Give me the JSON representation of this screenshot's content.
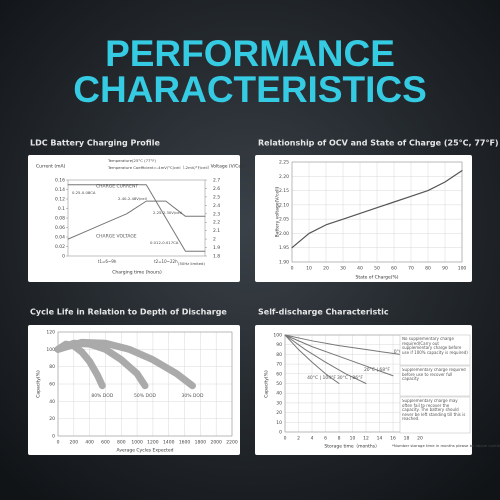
{
  "title": {
    "line1": "PERFORMANCE",
    "line2": "CHARACTERISTICS"
  },
  "chart_data": [
    {
      "type": "line",
      "title": "LDC Battery Charging Profile",
      "categories": [
        null,
        null,
        "t1=6~9h",
        null,
        null,
        "t2=10~22h",
        null,
        null
      ],
      "series": [
        {
          "name": "CHARGE CURRENT",
          "color": "#777777",
          "values": [
            0.15,
            0.15,
            0.15,
            0.15,
            0.15,
            0.08,
            0.01,
            0.01
          ]
        },
        {
          "name": "CHARGE VOLTAGE",
          "color": "#777777",
          "axis": "y2",
          "values": [
            2.0,
            2.1,
            2.2,
            2.3,
            2.45,
            2.45,
            2.27,
            2.27
          ]
        }
      ],
      "ylim": [
        0,
        0.16
      ],
      "yticks": [
        0,
        0.02,
        0.04,
        0.06,
        0.08,
        0.1,
        0.12,
        0.14,
        0.16
      ],
      "y2lim": [
        1.8,
        2.7
      ],
      "y2ticks": [
        1.8,
        1.9,
        2,
        2.1,
        2.2,
        2.3,
        2.4,
        2.5,
        2.6,
        2.7
      ],
      "ylabel": "Current (mA)",
      "y2label": "Voltage (V/Cell)",
      "xlabel": "Charging time (hours)",
      "grid": false,
      "annotations": [
        "Temperature(25°C (77°F)",
        "Temperature Coefficient=-4mV/°C/cell（-2mV/°F/cell）",
        "0.25-0.08CA",
        "2.40-2.48V/cell",
        "2.25-2.30V/cell",
        "0.012-0.017CA",
        "(50Hz limited)"
      ]
    },
    {
      "type": "line",
      "title": "Relationship of OCV and State of Charge (25°C, 77°F)",
      "x": [
        0,
        10,
        20,
        30,
        40,
        50,
        60,
        70,
        80,
        90,
        100
      ],
      "values": [
        1.95,
        2.0,
        2.03,
        2.05,
        2.07,
        2.09,
        2.11,
        2.13,
        2.15,
        2.18,
        2.22
      ],
      "color": "#555555",
      "xlim": [
        0,
        100
      ],
      "xticks": [
        0,
        10,
        20,
        30,
        40,
        50,
        60,
        70,
        80,
        90,
        100
      ],
      "ylim": [
        1.9,
        2.25
      ],
      "yticks": [
        {
          "value": 1.9,
          "label": "1.90"
        },
        1.95,
        {
          "value": 2,
          "label": "2.00"
        },
        2.05,
        {
          "value": 2.1,
          "label": "2.10"
        },
        2.15,
        {
          "value": 2.2,
          "label": "2.20"
        },
        2.25
      ],
      "ylabel": "Battery voltage(V/cell)",
      "xlabel": "State of Charge(%)",
      "grid": true
    },
    {
      "type": "line",
      "title": "Cycle Life in Relation to Depth of Discharge",
      "series": [
        {
          "name": "80% DOD",
          "color": "#aaaaaa",
          "x": [
            0,
            100,
            200,
            300,
            400,
            500,
            560
          ],
          "values": [
            100,
            106,
            104,
            97,
            86,
            70,
            58
          ]
        },
        {
          "name": "50% DOD",
          "color": "#aaaaaa",
          "x": [
            0,
            200,
            400,
            600,
            800,
            1000,
            1100
          ],
          "values": [
            100,
            107,
            106,
            100,
            88,
            72,
            58
          ]
        },
        {
          "name": "30% DOD",
          "color": "#aaaaaa",
          "x": [
            0,
            300,
            600,
            900,
            1200,
            1500,
            1700
          ],
          "values": [
            100,
            108,
            107,
            100,
            88,
            72,
            58
          ]
        }
      ],
      "xlim": [
        0,
        2200
      ],
      "xticks": [
        0,
        200,
        400,
        600,
        800,
        1000,
        1200,
        1400,
        1600,
        1800,
        2000,
        2200
      ],
      "ylim": [
        0,
        120
      ],
      "yticks": [
        0,
        20,
        40,
        60,
        80,
        100,
        120
      ],
      "ylabel": "Capacity(%)",
      "xlabel": "Average Cycles Expected",
      "grid": true
    },
    {
      "type": "line",
      "title": "Self-discharge Characteristic",
      "series": [
        {
          "name": "0°C | 32°F",
          "color": "#777777",
          "x": [
            0,
            4,
            8,
            12,
            16,
            20
          ],
          "values": [
            100,
            94,
            89,
            85,
            81,
            77
          ]
        },
        {
          "name": "20°C | 68°F",
          "color": "#777777",
          "x": [
            0,
            4,
            8,
            12,
            16
          ],
          "values": [
            100,
            88,
            78,
            68,
            58
          ]
        },
        {
          "name": "30°C | 86°F",
          "color": "#777777",
          "x": [
            0,
            3,
            6,
            9,
            12
          ],
          "values": [
            100,
            85,
            72,
            60,
            50
          ]
        },
        {
          "name": "40°C | 104°F",
          "color": "#777777",
          "x": [
            0,
            2,
            4,
            6,
            8
          ],
          "values": [
            100,
            85,
            72,
            60,
            50
          ]
        }
      ],
      "xlim": [
        0,
        20
      ],
      "xticks": [
        0,
        2,
        4,
        6,
        8,
        10,
        12,
        14,
        16,
        18,
        20
      ],
      "ylim": [
        0,
        100
      ],
      "yticks": [
        0,
        10,
        20,
        30,
        40,
        50,
        60,
        70,
        80,
        90,
        100
      ],
      "ylabel": "Capacity(%)",
      "xlabel": "Storage time（months）",
      "grid": true,
      "annotations": [
        "No supplementary charge required(Carry out supplementary charge before use if 100% capacity is required)",
        "Supplementary charge required before use to recover full capacity",
        "Supplementary charge may often fail to recover the capacity. The battery should never be left standing till this is reached.",
        "*Number storage time in months please be above continuously"
      ]
    }
  ]
}
